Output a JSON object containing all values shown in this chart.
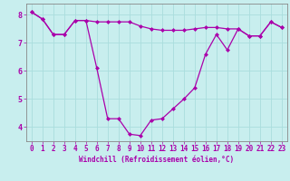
{
  "xlabel": "Windchill (Refroidissement éolien,°C)",
  "background_color": "#c8eeee",
  "grid_color": "#aadddd",
  "line_color": "#aa00aa",
  "spine_color": "#888888",
  "x_ticks": [
    0,
    1,
    2,
    3,
    4,
    5,
    6,
    7,
    8,
    9,
    10,
    11,
    12,
    13,
    14,
    15,
    16,
    17,
    18,
    19,
    20,
    21,
    22,
    23
  ],
  "y_ticks": [
    4,
    5,
    6,
    7,
    8
  ],
  "xlim": [
    -0.5,
    23.5
  ],
  "ylim": [
    3.5,
    8.4
  ],
  "series1_x": [
    0,
    1,
    2,
    3,
    4,
    5,
    6,
    7,
    8,
    9,
    10,
    11,
    12,
    13,
    14,
    15,
    16,
    17,
    18,
    19,
    20,
    21,
    22,
    23
  ],
  "series1_y": [
    8.1,
    7.85,
    7.3,
    7.3,
    7.8,
    7.8,
    7.75,
    7.75,
    7.75,
    7.75,
    7.6,
    7.5,
    7.45,
    7.45,
    7.45,
    7.5,
    7.55,
    7.55,
    7.5,
    7.5,
    7.25,
    7.25,
    7.75,
    7.55
  ],
  "series2_x": [
    0,
    1,
    2,
    3,
    4,
    5,
    6,
    7,
    8,
    9,
    10,
    11,
    12,
    13,
    14,
    15,
    16,
    17,
    18,
    19,
    20,
    21,
    22,
    23
  ],
  "series2_y": [
    8.1,
    7.85,
    7.3,
    7.3,
    7.8,
    7.8,
    6.1,
    4.3,
    4.3,
    3.75,
    3.7,
    4.25,
    4.3,
    4.65,
    5.0,
    5.4,
    6.6,
    7.3,
    6.75,
    7.5,
    7.25,
    7.25,
    7.75,
    7.55
  ],
  "tick_fontsize": 5.5,
  "xlabel_fontsize": 5.5,
  "marker_size": 2.5,
  "linewidth": 0.9
}
